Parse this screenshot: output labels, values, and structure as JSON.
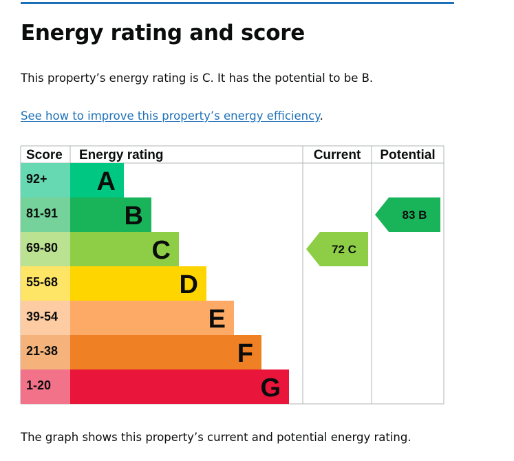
{
  "page": {
    "title": "Energy rating and score",
    "intro": "This property’s energy rating is C. It has the potential to be B.",
    "link_text": "See how to improve this property’s energy efficiency",
    "link_suffix": ".",
    "caption": "The graph shows this property’s current and potential energy rating."
  },
  "chart": {
    "headers": {
      "score": "Score",
      "rating": "Energy rating",
      "current": "Current",
      "potential": "Potential"
    },
    "bands": [
      {
        "score": "92+",
        "letter": "A",
        "color": "#00c781",
        "score_bg": "#66d9b3",
        "letter_color": "#0b0c0c"
      },
      {
        "score": "81-91",
        "letter": "B",
        "color": "#19b459",
        "score_bg": "#75d29b",
        "letter_color": "#0b0c0c"
      },
      {
        "score": "69-80",
        "letter": "C",
        "color": "#8dce46",
        "score_bg": "#bbe290",
        "letter_color": "#0b0c0c"
      },
      {
        "score": "55-68",
        "letter": "D",
        "color": "#ffd500",
        "score_bg": "#ffe566",
        "letter_color": "#0b0c0c"
      },
      {
        "score": "39-54",
        "letter": "E",
        "color": "#fcaa65",
        "score_bg": "#fdcca3",
        "letter_color": "#0b0c0c"
      },
      {
        "score": "21-38",
        "letter": "F",
        "color": "#ef8023",
        "score_bg": "#f5b37b",
        "letter_color": "#0b0c0c"
      },
      {
        "score": "1-20",
        "letter": "G",
        "color": "#e9153b",
        "score_bg": "#f27389",
        "letter_color": "#0b0c0c"
      }
    ],
    "current": {
      "score": "72",
      "letter": "C",
      "band_index": 2,
      "color": "#8dce46",
      "text_color": "#0b0c0c"
    },
    "potential": {
      "score": "83",
      "letter": "B",
      "band_index": 1,
      "color": "#19b459",
      "text_color": "#0b0c0c"
    },
    "grid_color": "#b1b4b6"
  }
}
